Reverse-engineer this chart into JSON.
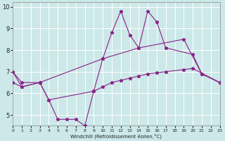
{
  "xlabel": "Windchill (Refroidissement éolien,°C)",
  "xlim": [
    0,
    23
  ],
  "ylim": [
    4.5,
    10.2
  ],
  "xticks": [
    0,
    1,
    2,
    3,
    4,
    5,
    6,
    7,
    8,
    9,
    10,
    11,
    12,
    13,
    14,
    15,
    16,
    17,
    18,
    19,
    20,
    21,
    22,
    23
  ],
  "yticks": [
    5,
    6,
    7,
    8,
    9,
    10
  ],
  "background_color": "#cce8e8",
  "grid_color": "#ffffff",
  "line_color": "#882288",
  "series": [
    {
      "x": [
        0,
        1,
        3,
        4,
        5,
        6,
        7,
        8,
        9,
        10,
        11,
        12,
        13,
        14,
        15,
        16,
        17,
        20,
        21,
        23
      ],
      "y": [
        7.0,
        6.3,
        6.5,
        5.7,
        4.8,
        4.8,
        4.8,
        4.5,
        6.1,
        7.6,
        8.8,
        9.8,
        8.7,
        8.1,
        9.8,
        9.3,
        8.1,
        7.8,
        6.9,
        6.5
      ]
    },
    {
      "x": [
        0,
        1,
        3,
        10,
        14,
        19,
        21,
        23
      ],
      "y": [
        7.0,
        6.5,
        6.5,
        7.6,
        8.1,
        8.5,
        6.9,
        6.5
      ]
    },
    {
      "x": [
        0,
        1,
        3,
        4,
        9,
        10,
        11,
        12,
        13,
        14,
        15,
        16,
        17,
        19,
        20,
        23
      ],
      "y": [
        6.5,
        6.3,
        6.5,
        5.7,
        6.1,
        6.3,
        6.5,
        6.6,
        6.7,
        6.8,
        6.9,
        6.95,
        7.0,
        7.1,
        7.15,
        6.5
      ]
    }
  ]
}
